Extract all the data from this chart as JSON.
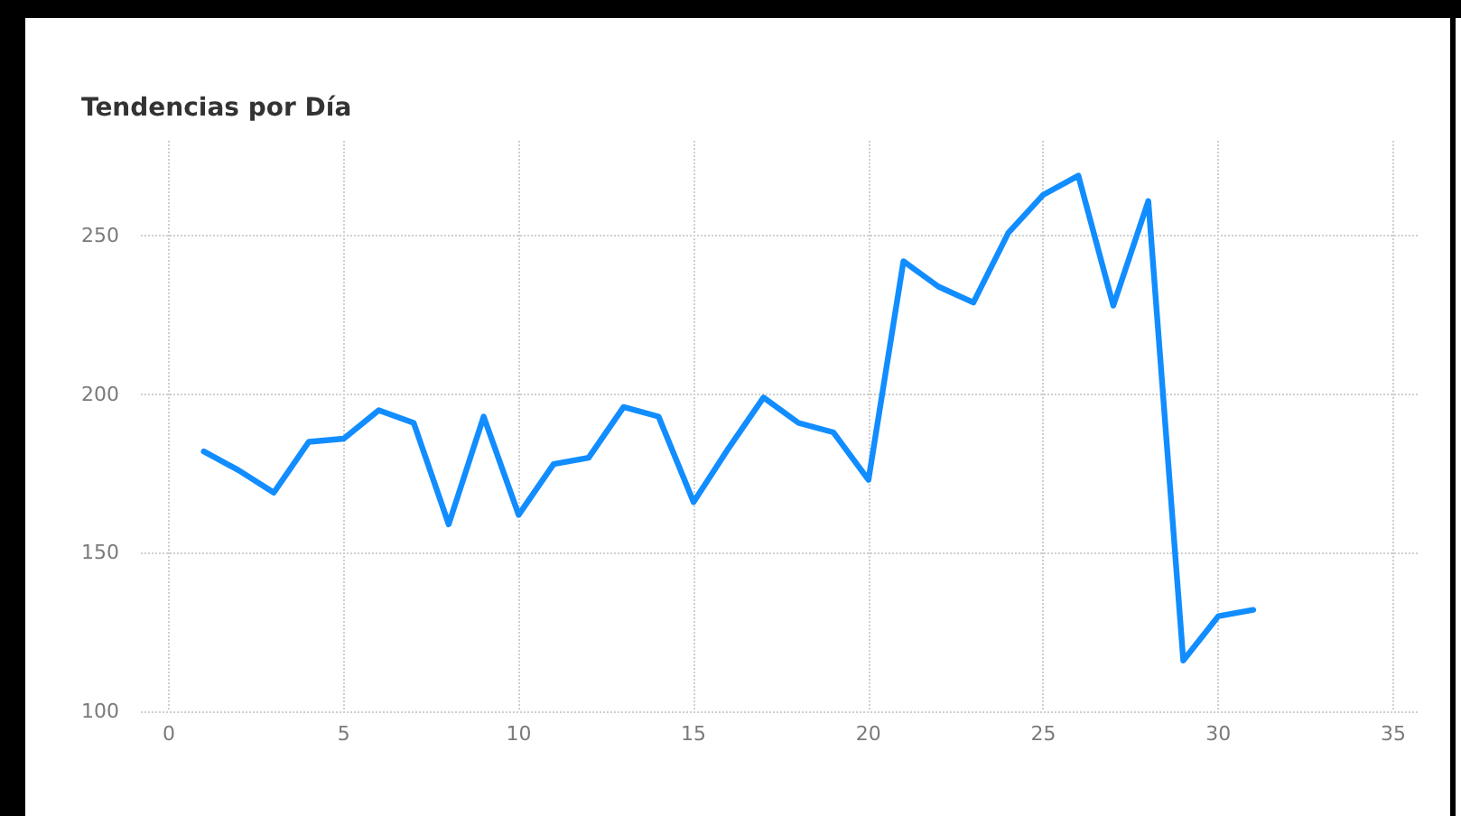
{
  "chart_data": {
    "type": "line",
    "title": "Tendencias por Día",
    "x": [
      1,
      2,
      3,
      4,
      5,
      6,
      7,
      8,
      9,
      10,
      11,
      12,
      13,
      14,
      15,
      16,
      17,
      18,
      19,
      20,
      21,
      22,
      23,
      24,
      25,
      26,
      27,
      28,
      29,
      30,
      31
    ],
    "series": [
      {
        "color": "#118dff",
        "values": [
          182,
          176,
          169,
          185,
          186,
          195,
          191,
          159,
          193,
          162,
          178,
          180,
          196,
          193,
          166,
          183,
          199,
          191,
          188,
          173,
          242,
          234,
          229,
          251,
          263,
          269,
          228,
          261,
          116,
          130,
          132
        ]
      }
    ],
    "xlim": [
      -0.8,
      35.7
    ],
    "xticks": [
      0,
      5,
      10,
      15,
      20,
      25,
      30,
      35
    ],
    "ylim": [
      100,
      280
    ],
    "yticks": [
      100,
      150,
      200,
      250
    ],
    "grid": true,
    "marker": "none",
    "line_style": "solid"
  }
}
